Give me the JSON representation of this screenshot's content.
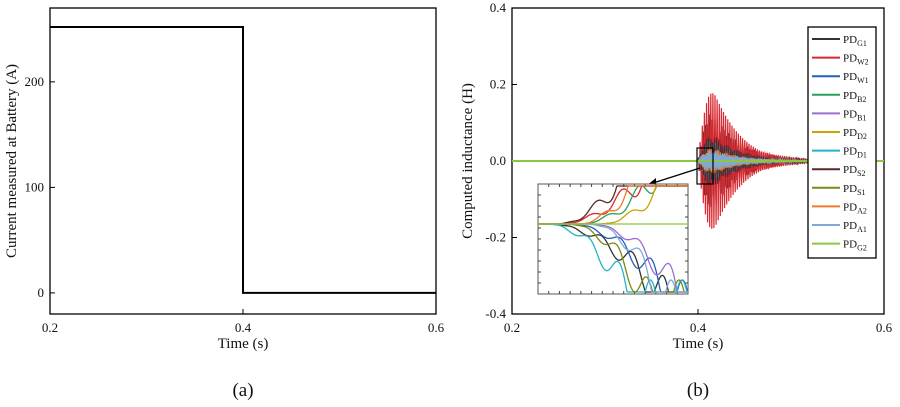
{
  "chart_data": [
    {
      "panel": "(a)",
      "type": "line",
      "xlabel": "Time (s)",
      "ylabel": "Current measured at Battery (A)",
      "xlim": [
        0.2,
        0.6
      ],
      "ylim": [
        -20,
        270
      ],
      "xticks": [
        "0.2",
        "0.4",
        "0.6"
      ],
      "yticks": [
        "0",
        "100",
        "200"
      ],
      "series": [
        {
          "x": [
            0.2,
            0.4,
            0.4,
            0.6
          ],
          "y": [
            252,
            252,
            0,
            0
          ],
          "color": "#000000"
        }
      ]
    },
    {
      "panel": "(b)",
      "type": "line",
      "xlabel": "Time (s)",
      "ylabel": "Computed inductance (H)",
      "xlim": [
        0.2,
        0.6
      ],
      "ylim": [
        -0.4,
        0.4
      ],
      "xticks": [
        "0.2",
        "0.4",
        "0.6"
      ],
      "yticks": [
        "-0.4",
        "-0.2",
        "0.0",
        "0.2",
        "0.4"
      ],
      "legend_position": "right",
      "series": [
        {
          "name": "PD",
          "sub": "G1",
          "color": "#333333",
          "amp": 0.22,
          "freq": 40,
          "phase": 0.0
        },
        {
          "name": "PD",
          "sub": "W2",
          "color": "#d9282f",
          "amp": 0.32,
          "freq": 44,
          "phase": 1.2
        },
        {
          "name": "PD",
          "sub": "W1",
          "color": "#1f5fbf",
          "amp": 0.1,
          "freq": 50,
          "phase": 0.4
        },
        {
          "name": "PD",
          "sub": "B2",
          "color": "#2aa05a",
          "amp": 0.08,
          "freq": 55,
          "phase": 2.1
        },
        {
          "name": "PD",
          "sub": "B1",
          "color": "#9b6fd0",
          "amp": 0.07,
          "freq": 60,
          "phase": 0.9
        },
        {
          "name": "PD",
          "sub": "D2",
          "color": "#c9a300",
          "amp": 0.06,
          "freq": 48,
          "phase": 1.7
        },
        {
          "name": "PD",
          "sub": "D1",
          "color": "#22b3c8",
          "amp": 0.09,
          "freq": 52,
          "phase": 2.6
        },
        {
          "name": "PD",
          "sub": "S2",
          "color": "#5a2a2a",
          "amp": 0.12,
          "freq": 46,
          "phase": 0.2
        },
        {
          "name": "PD",
          "sub": "S1",
          "color": "#7d8a12",
          "amp": 0.05,
          "freq": 58,
          "phase": 1.1
        },
        {
          "name": "PD",
          "sub": "A2",
          "color": "#f07a2a",
          "amp": 0.06,
          "freq": 62,
          "phase": 2.9
        },
        {
          "name": "PD",
          "sub": "A1",
          "color": "#7fa9d8",
          "amp": 0.05,
          "freq": 54,
          "phase": 0.6
        },
        {
          "name": "PD",
          "sub": "G2",
          "color": "#8dc63f",
          "amp": 0.0,
          "freq": 0,
          "phase": 0.0
        }
      ]
    }
  ]
}
